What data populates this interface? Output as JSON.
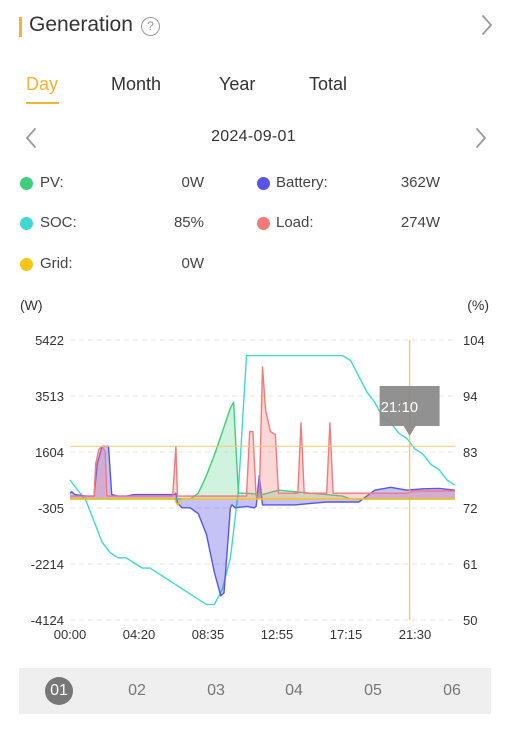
{
  "header": {
    "title": "Generation",
    "help_glyph": "?",
    "help_icon": "question-circle-icon",
    "chevron_icon": "chevron-right-icon",
    "accent_color": "#f5b335"
  },
  "tabs": [
    {
      "label": "Day",
      "active": true
    },
    {
      "label": "Month",
      "active": false
    },
    {
      "label": "Year",
      "active": false
    },
    {
      "label": "Total",
      "active": false
    }
  ],
  "date": {
    "value": "2024-09-01",
    "prev_icon": "chevron-left-icon",
    "next_icon": "chevron-right-icon"
  },
  "stats": {
    "pv": {
      "label": "PV:",
      "value": "0W",
      "color": "#3fcf7a"
    },
    "battery": {
      "label": "Battery:",
      "value": "362W",
      "color": "#5a54e6"
    },
    "soc": {
      "label": "SOC:",
      "value": "85%",
      "color": "#3ed8d0"
    },
    "load": {
      "label": "Load:",
      "value": "274W",
      "color": "#f27a7a"
    },
    "grid": {
      "label": "Grid:",
      "value": "0W",
      "color": "#f5c518"
    }
  },
  "chart_data": {
    "type": "line",
    "left_unit": "(W)",
    "right_unit": "(%)",
    "y_left_ticks": [
      "5422",
      "3513",
      "1604",
      "-305",
      "-2214",
      "-4124"
    ],
    "y_right_ticks": [
      "104",
      "94",
      "83",
      "72",
      "61",
      "50"
    ],
    "x_ticks": [
      "00:00",
      "04:20",
      "08:35",
      "12:55",
      "17:15",
      "21:30"
    ],
    "ylim_left": [
      -4124,
      5422
    ],
    "ylim_right": [
      50,
      104
    ],
    "xlim_hours": [
      0,
      24
    ],
    "grid": true,
    "cursor": {
      "time_label": "21:10",
      "hour": 21.17
    },
    "reference_line_w": 1800,
    "series": [
      {
        "name": "SOC",
        "axis": "right",
        "color": "#3ed8d0",
        "x": [
          0,
          0.5,
          1,
          1.5,
          2,
          2.5,
          3,
          3.5,
          4,
          4.5,
          5,
          5.5,
          6,
          6.5,
          7,
          7.5,
          8,
          8.5,
          9,
          9.5,
          10,
          10.5,
          11,
          12,
          13,
          14,
          15,
          16,
          17,
          17.5,
          18,
          18.5,
          19,
          19.5,
          20,
          20.5,
          21,
          21.5,
          22,
          22.5,
          23,
          23.5,
          24
        ],
        "y": [
          77,
          75,
          73,
          69,
          65,
          63,
          62,
          62,
          61,
          60,
          60,
          59,
          58,
          57,
          56,
          55,
          54,
          53,
          53,
          56,
          62,
          75,
          101,
          101,
          101,
          101,
          101,
          101,
          101,
          100,
          97,
          94,
          92,
          89,
          88,
          86,
          85,
          83,
          82,
          80,
          79,
          77,
          76
        ]
      },
      {
        "name": "Battery",
        "axis": "left",
        "color": "#5a54e6",
        "x": [
          0,
          0.1,
          0.3,
          1,
          1.5,
          1.7,
          2,
          2.4,
          2.6,
          3,
          3.5,
          4,
          5,
          6,
          6.5,
          6.6,
          6.7,
          7,
          7.5,
          8,
          8.5,
          9,
          9.4,
          9.6,
          10,
          10.1,
          10.3,
          11,
          11.5,
          11.6,
          11.8,
          12,
          13,
          14,
          15,
          16,
          16.5,
          17,
          18,
          19,
          20,
          21,
          22,
          23,
          24
        ],
        "y": [
          200,
          250,
          150,
          100,
          100,
          1200,
          1800,
          1800,
          150,
          100,
          100,
          150,
          150,
          150,
          150,
          200,
          -150,
          -300,
          -300,
          -500,
          -1200,
          -2500,
          -3300,
          -3200,
          -300,
          -200,
          -300,
          -250,
          -300,
          -250,
          800,
          -200,
          -200,
          -200,
          -150,
          -100,
          -100,
          -100,
          -100,
          300,
          400,
          300,
          350,
          362,
          300
        ]
      },
      {
        "name": "PV",
        "axis": "left",
        "color": "#3fcf7a",
        "x": [
          0,
          6,
          7,
          7.5,
          8,
          8.5,
          9,
          9.5,
          10,
          10.2,
          10.5,
          11,
          12,
          13,
          14,
          15,
          16,
          17,
          17.5,
          18,
          19,
          20,
          21,
          22,
          23,
          24
        ],
        "y": [
          0,
          0,
          0,
          0,
          200,
          800,
          1500,
          2300,
          3100,
          3300,
          200,
          200,
          150,
          300,
          250,
          200,
          150,
          100,
          0,
          0,
          0,
          0,
          0,
          0,
          0,
          0
        ]
      },
      {
        "name": "Load",
        "axis": "left",
        "color": "#f27a7a",
        "x": [
          0,
          0.5,
          1,
          1.5,
          1.6,
          1.8,
          2,
          2.2,
          2.3,
          2.5,
          3,
          3.5,
          4,
          4.5,
          5,
          5.5,
          6,
          6.2,
          6.4,
          6.6,
          6.7,
          6.9,
          7,
          7.5,
          8,
          8.5,
          9,
          9.5,
          10,
          10.5,
          11,
          11.2,
          11.4,
          11.6,
          11.8,
          12,
          12.2,
          12.5,
          12.8,
          13,
          13.5,
          14,
          14.2,
          14.4,
          14.6,
          14.8,
          15,
          15.5,
          16,
          16.2,
          16.4,
          16.6,
          16.8,
          17,
          17.5,
          18,
          18.5,
          19,
          19.5,
          20,
          20.5,
          21,
          21.5,
          22,
          22.5,
          23,
          23.5,
          24
        ],
        "y": [
          100,
          100,
          100,
          100,
          1200,
          1700,
          1800,
          1600,
          100,
          100,
          100,
          100,
          100,
          100,
          100,
          100,
          100,
          100,
          100,
          1800,
          100,
          100,
          100,
          100,
          100,
          100,
          100,
          100,
          100,
          100,
          100,
          2300,
          2300,
          100,
          100,
          4500,
          3000,
          2300,
          2200,
          200,
          200,
          200,
          200,
          2600,
          200,
          200,
          200,
          200,
          200,
          2600,
          200,
          200,
          200,
          200,
          200,
          200,
          200,
          200,
          200,
          200,
          200,
          200,
          274,
          274,
          274,
          274,
          274,
          274
        ]
      },
      {
        "name": "Grid",
        "axis": "left",
        "color": "#f5c518",
        "x": [
          0,
          6.5,
          6.7,
          7,
          24
        ],
        "y": [
          0,
          0,
          -200,
          0,
          0
        ]
      }
    ]
  },
  "days": [
    "01",
    "02",
    "03",
    "04",
    "05",
    "06"
  ],
  "active_day": "01"
}
